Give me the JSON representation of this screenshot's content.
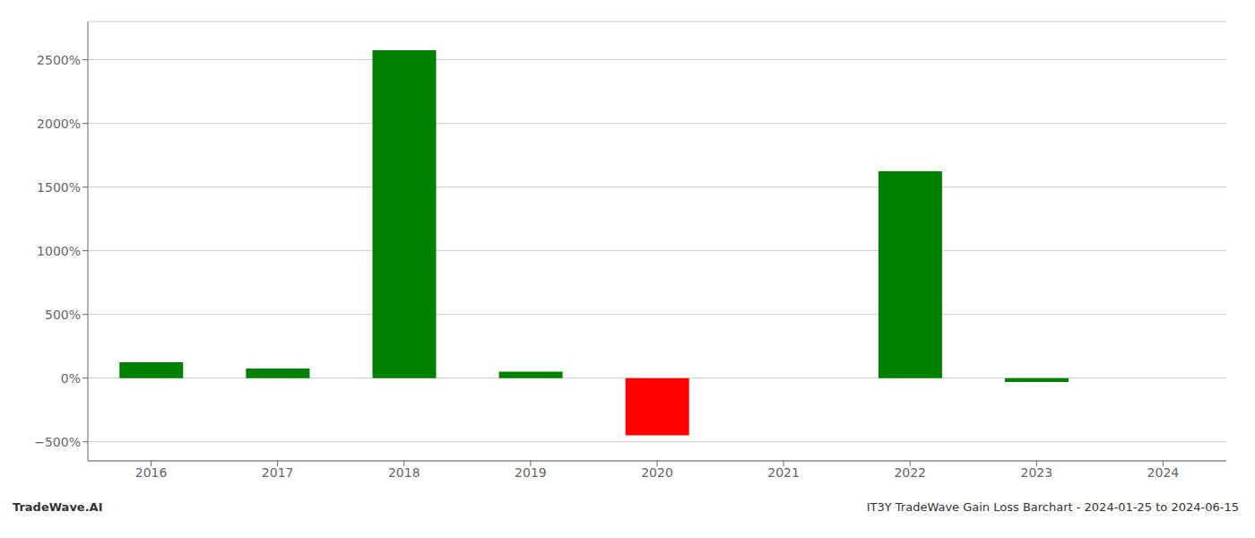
{
  "chart_data": {
    "type": "bar",
    "categories": [
      "2016",
      "2017",
      "2018",
      "2019",
      "2020",
      "2021",
      "2022",
      "2023",
      "2024"
    ],
    "values": [
      125,
      75,
      2575,
      50,
      -450,
      0,
      1625,
      -30,
      0
    ],
    "colors": [
      "#008000",
      "#008000",
      "#008000",
      "#008000",
      "#ff0000",
      "#008000",
      "#008000",
      "#008000",
      "#008000"
    ],
    "ylim": [
      -650,
      2800
    ],
    "yticks": [
      {
        "value": -500,
        "label": "−500%"
      },
      {
        "value": 0,
        "label": "0%"
      },
      {
        "value": 500,
        "label": "500%"
      },
      {
        "value": 1000,
        "label": "1000%"
      },
      {
        "value": 1500,
        "label": "1500%"
      },
      {
        "value": 2000,
        "label": "2000%"
      },
      {
        "value": 2500,
        "label": "2500%"
      }
    ],
    "grid": true,
    "annotations": [
      "TradeWave.AI",
      "IT3Y TradeWave Gain Loss Barchart - 2024-01-25 to 2024-06-15"
    ]
  }
}
